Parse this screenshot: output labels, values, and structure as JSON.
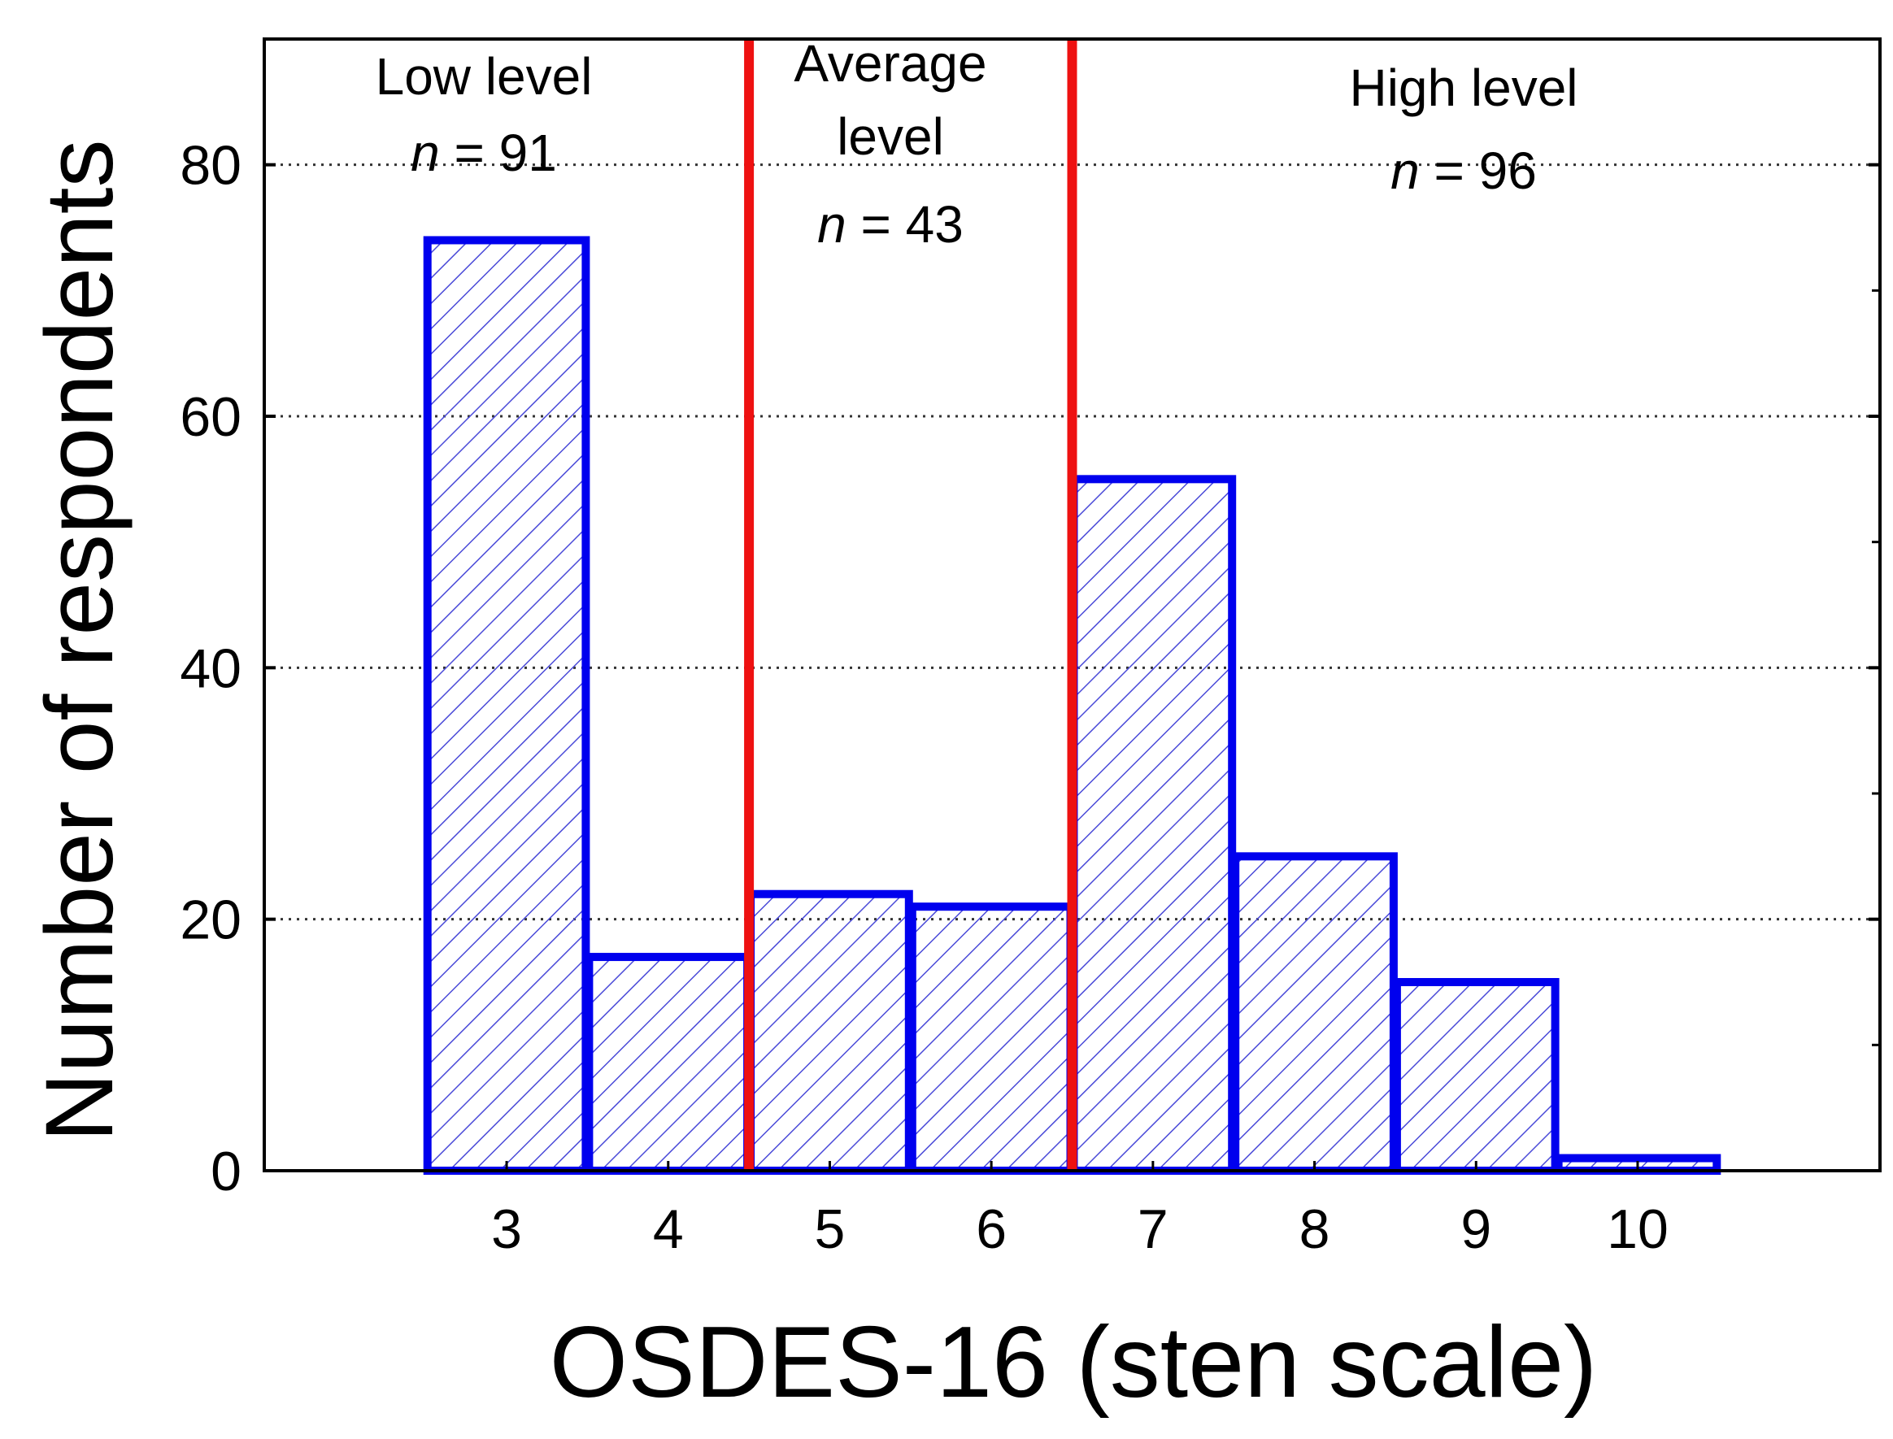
{
  "chart_data": {
    "type": "bar",
    "title": "",
    "xlabel": "OSDES-16 (sten scale)",
    "ylabel": "Number of respondents",
    "categories": [
      "3",
      "4",
      "5",
      "6",
      "7",
      "8",
      "9",
      "10"
    ],
    "values": [
      74,
      17,
      22,
      21,
      55,
      25,
      15,
      1
    ],
    "ylim": [
      0,
      90
    ],
    "xlim": [
      1.5,
      11.5
    ],
    "yticks": [
      0,
      20,
      40,
      60,
      80
    ],
    "grid": "horizontal dotted",
    "bar_style": "blue outline with diagonal hatching",
    "cutoffs": [
      4.5,
      6.5
    ],
    "regions": [
      {
        "label_lines": [
          "Low level"
        ],
        "n_prefix": "n",
        "n_text": " = 91"
      },
      {
        "label_lines": [
          "Average",
          "level"
        ],
        "n_prefix": "n",
        "n_text": " = 43"
      },
      {
        "label_lines": [
          "High level"
        ],
        "n_prefix": "n",
        "n_text": " = 96"
      }
    ],
    "colors": {
      "bar_stroke": "#0000ee",
      "hatch": "#4a4ad8",
      "cutoff": "#ee1111",
      "grid": "#333333"
    }
  }
}
